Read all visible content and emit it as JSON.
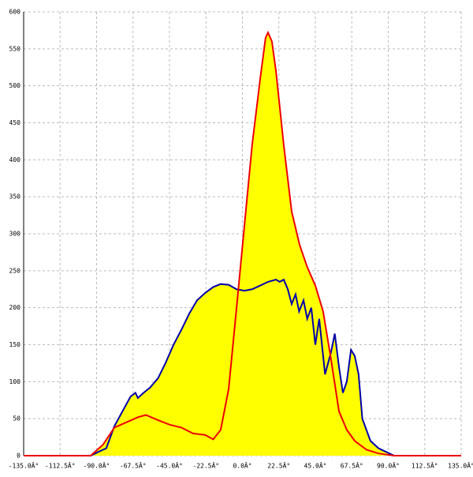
{
  "chart_data": {
    "type": "area",
    "fill": "#ffff00",
    "grid": true,
    "xlim": [
      -135,
      135
    ],
    "ylim": [
      0,
      600
    ],
    "xticks": [
      {
        "value": -135,
        "label": "-135.0Â°"
      },
      {
        "value": -112.5,
        "label": "-112.5Â°"
      },
      {
        "value": -90,
        "label": "-90.0Â°"
      },
      {
        "value": -67.5,
        "label": "-67.5Â°"
      },
      {
        "value": -45,
        "label": "-45.0Â°"
      },
      {
        "value": -22.5,
        "label": "-22.5Â°"
      },
      {
        "value": 0,
        "label": "0.0Â°"
      },
      {
        "value": 22.5,
        "label": "22.5Â°"
      },
      {
        "value": 45,
        "label": "45.0Â°"
      },
      {
        "value": 67.5,
        "label": "67.5Â°"
      },
      {
        "value": 90,
        "label": "90.0Â°"
      },
      {
        "value": 112.5,
        "label": "112.5Â°"
      },
      {
        "value": 135,
        "label": "135.0Â°"
      }
    ],
    "yticks": [
      0,
      50,
      100,
      150,
      200,
      250,
      300,
      350,
      400,
      450,
      500,
      550,
      600
    ],
    "series": [
      {
        "color": "#0000aa",
        "x": [
          -93.6,
          -89,
          -84,
          -79,
          -74,
          -69,
          -66,
          -64.5,
          -61,
          -57,
          -52,
          -47.5,
          -42.5,
          -37.7,
          -32.8,
          -28,
          -23,
          -18,
          -13.4,
          -8.5,
          -3.6,
          1.2,
          6,
          11,
          15.8,
          20.7,
          23,
          25.5,
          28,
          30.4,
          32.8,
          35,
          37.7,
          40,
          42.5,
          45,
          47.4,
          51,
          54.7,
          57,
          59.6,
          62,
          64.4,
          67,
          69.3,
          71.7,
          74,
          79,
          84,
          88.8,
          93.6
        ],
        "values": [
          0,
          5,
          10,
          40,
          60,
          80,
          85,
          78,
          85,
          92,
          105,
          125,
          150,
          170,
          192,
          210,
          220,
          228,
          232,
          231,
          225,
          223,
          225,
          230,
          235,
          238,
          235,
          238,
          225,
          205,
          218,
          195,
          210,
          185,
          200,
          150,
          185,
          110,
          140,
          165,
          120,
          85,
          100,
          143,
          135,
          110,
          50,
          20,
          10,
          5,
          0
        ]
      },
      {
        "color": "#ee0000",
        "x": [
          -135,
          -93.6,
          -86,
          -79,
          -71.7,
          -64.5,
          -59.6,
          -52,
          -45,
          -37.7,
          -30.4,
          -23,
          -18,
          -13.4,
          -8.5,
          -3.6,
          1.2,
          6,
          11,
          14.3,
          15.8,
          18.2,
          20.7,
          25.5,
          30.4,
          35.3,
          40,
          45,
          49.8,
          54.7,
          59.6,
          64.4,
          69.3,
          76.6,
          84,
          93.6,
          135
        ],
        "values": [
          0,
          0,
          15,
          38,
          45,
          52,
          55,
          48,
          42,
          38,
          30,
          28,
          22,
          35,
          90,
          200,
          310,
          420,
          510,
          565,
          572,
          560,
          520,
          420,
          330,
          285,
          255,
          230,
          195,
          130,
          60,
          35,
          20,
          8,
          3,
          0,
          0
        ]
      }
    ]
  }
}
